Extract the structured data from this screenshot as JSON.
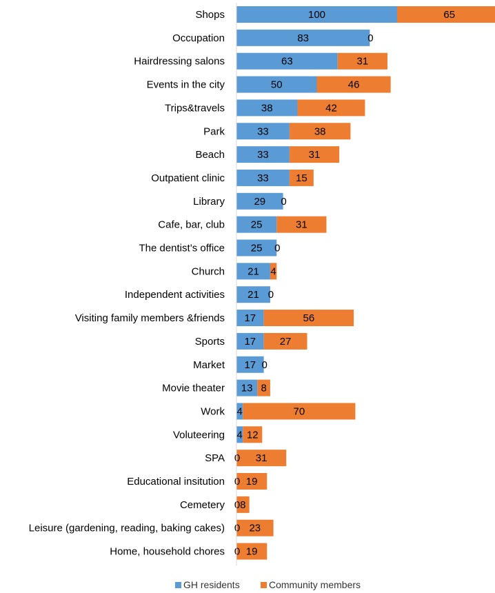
{
  "chart_data": {
    "type": "bar",
    "orientation": "horizontal",
    "stacked": true,
    "categories": [
      "Shops",
      "Occupation",
      "Hairdressing salons",
      "Events in the city",
      "Trips&travels",
      "Park",
      "Beach",
      "Outpatient clinic",
      "Library",
      "Cafe, bar, club",
      "The dentist’s office",
      "Church",
      "Independent activities",
      "Visiting family members &friends",
      "Sports",
      "Market",
      "Movie theater",
      "Work",
      "Voluteering",
      "SPA",
      "Educational insitution",
      "Cemetery",
      "Leisure (gardening, reading, baking cakes)",
      "Home, household chores"
    ],
    "series": [
      {
        "name": "GH residents",
        "color": "#5b9bd5",
        "values": [
          100,
          83,
          63,
          50,
          38,
          33,
          33,
          33,
          29,
          25,
          25,
          21,
          21,
          17,
          17,
          17,
          13,
          4,
          4,
          0,
          0,
          0,
          0,
          0
        ]
      },
      {
        "name": "Community members",
        "color": "#ed7d31",
        "values": [
          65,
          0,
          31,
          46,
          42,
          38,
          31,
          15,
          0,
          31,
          0,
          4,
          0,
          56,
          27,
          0,
          8,
          70,
          12,
          31,
          19,
          8,
          23,
          19
        ]
      }
    ],
    "title": "",
    "xlabel": "",
    "ylabel": "",
    "xlim": [
      0,
      160
    ],
    "grid": false,
    "legend_position": "bottom"
  }
}
